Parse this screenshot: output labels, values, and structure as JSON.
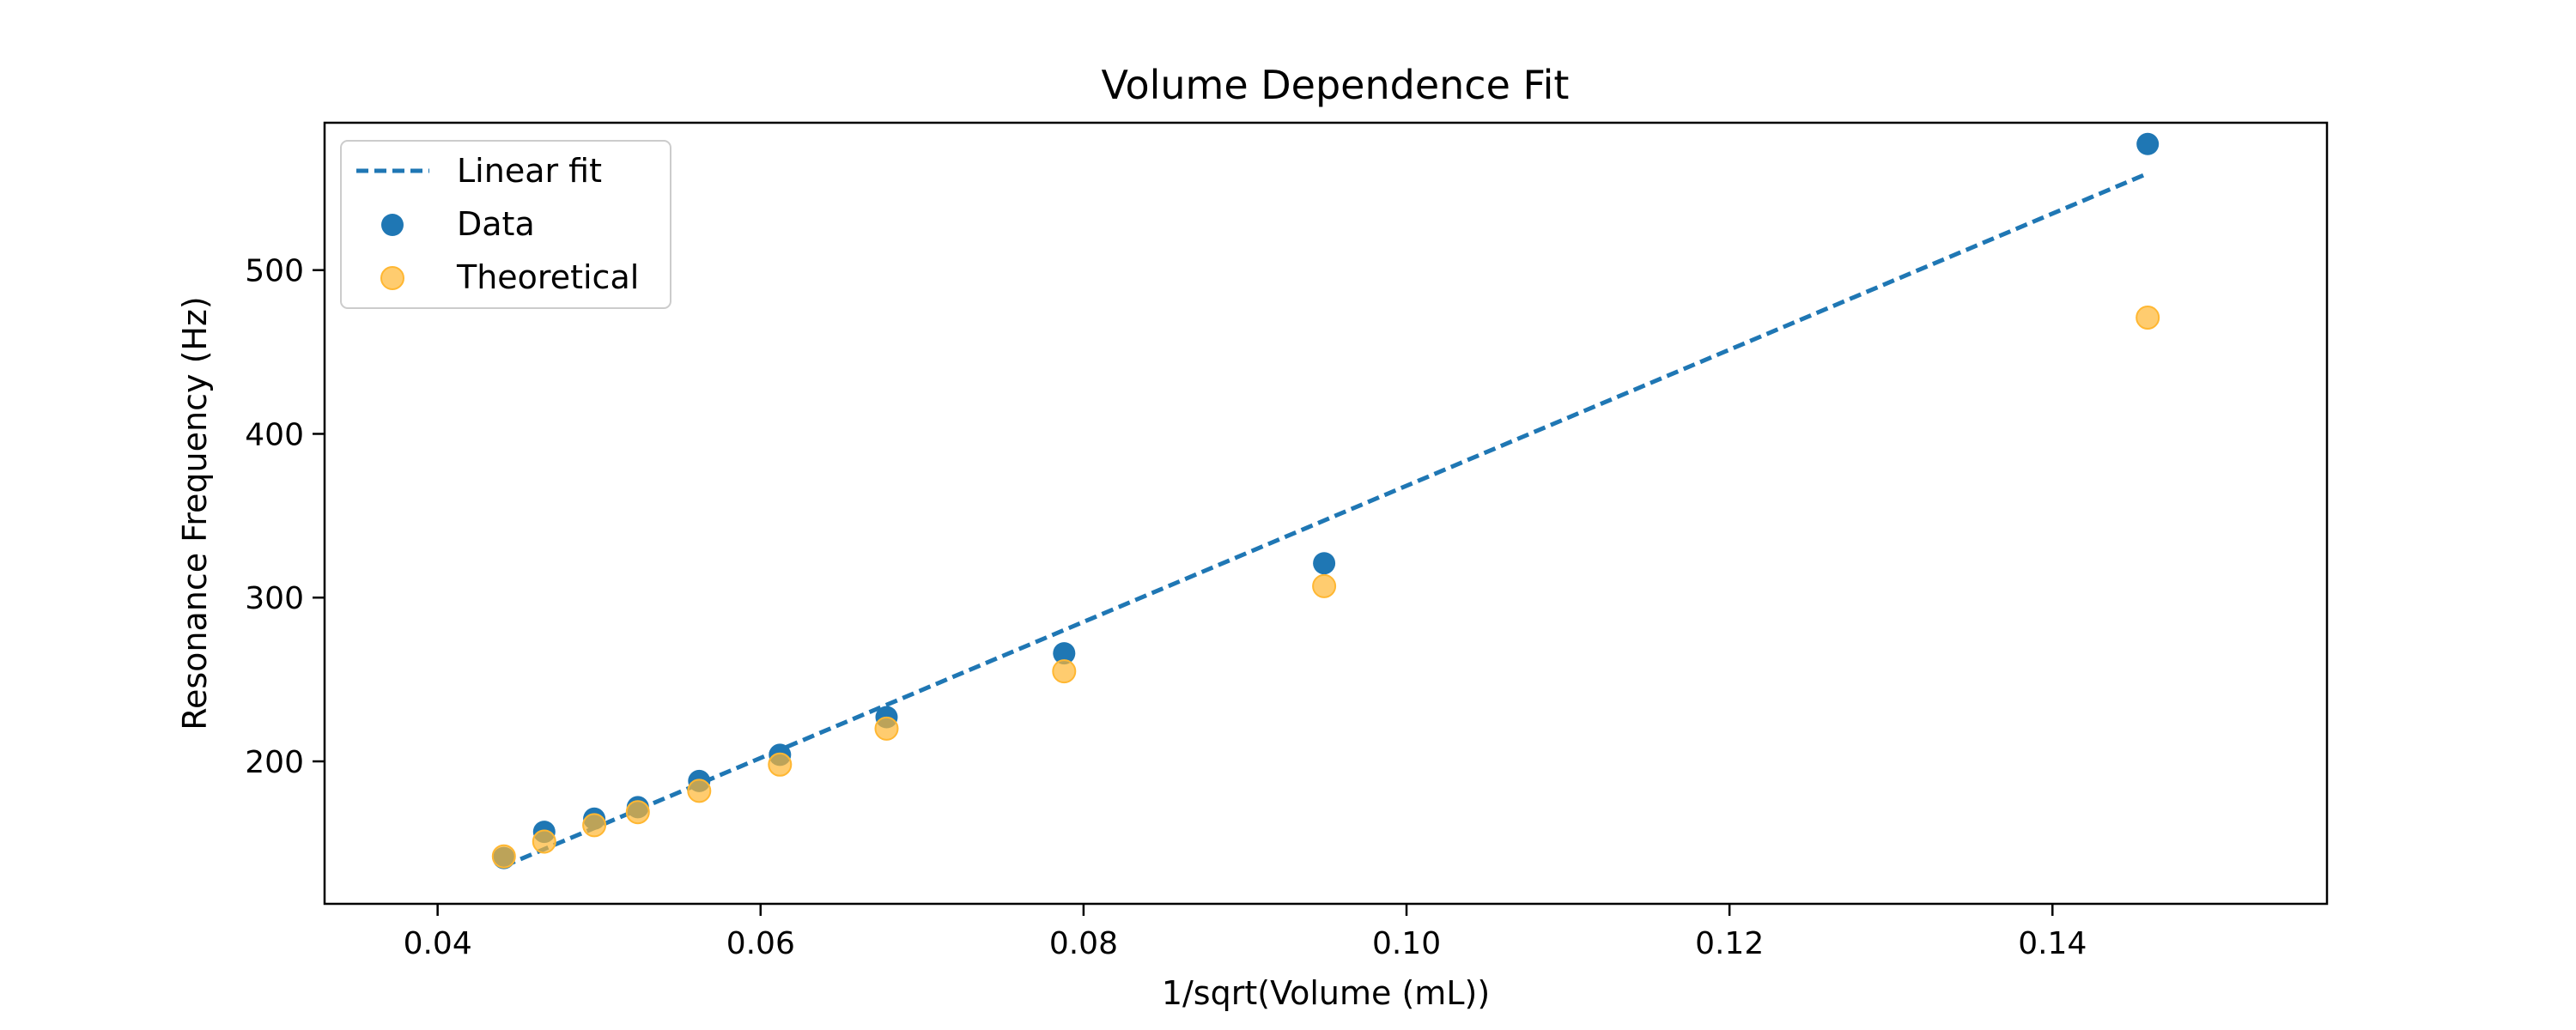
{
  "chart_data": {
    "type": "scatter",
    "title": "Volume Dependence Fit",
    "xlabel": "1/sqrt(Volume (mL))",
    "ylabel": "Resonance Frequency (Hz)",
    "xlim": [
      0.033,
      0.157
    ],
    "ylim": [
      113,
      590
    ],
    "xticks": [
      0.04,
      0.06,
      0.08,
      0.1,
      0.12,
      0.14
    ],
    "xtick_labels": [
      "0.04",
      "0.06",
      "0.08",
      "0.10",
      "0.12",
      "0.14"
    ],
    "yticks": [
      200,
      300,
      400,
      500
    ],
    "ytick_labels": [
      "200",
      "300",
      "400",
      "500"
    ],
    "grid": false,
    "legend_position": "top-left",
    "series": [
      {
        "name": "Linear fit",
        "kind": "line",
        "style": "dashed",
        "color": "#1f77b4",
        "x": [
          0.0441,
          0.1459
        ],
        "y": [
          136,
          559
        ]
      },
      {
        "name": "Data",
        "kind": "scatter",
        "color": "#1f77b4",
        "x": [
          0.0441,
          0.0466,
          0.0497,
          0.0524,
          0.0562,
          0.0612,
          0.0678,
          0.0788,
          0.0949,
          0.1459
        ],
        "y": [
          141,
          157,
          165,
          172,
          188,
          204,
          227,
          266,
          321,
          577
        ]
      },
      {
        "name": "Theoretical",
        "kind": "scatter",
        "color": "#ffb732",
        "x": [
          0.0441,
          0.0466,
          0.0497,
          0.0524,
          0.0562,
          0.0612,
          0.0678,
          0.0788,
          0.0949,
          0.1459
        ],
        "y": [
          142,
          151,
          161,
          169,
          182,
          198,
          220,
          255,
          307,
          471
        ]
      }
    ]
  }
}
